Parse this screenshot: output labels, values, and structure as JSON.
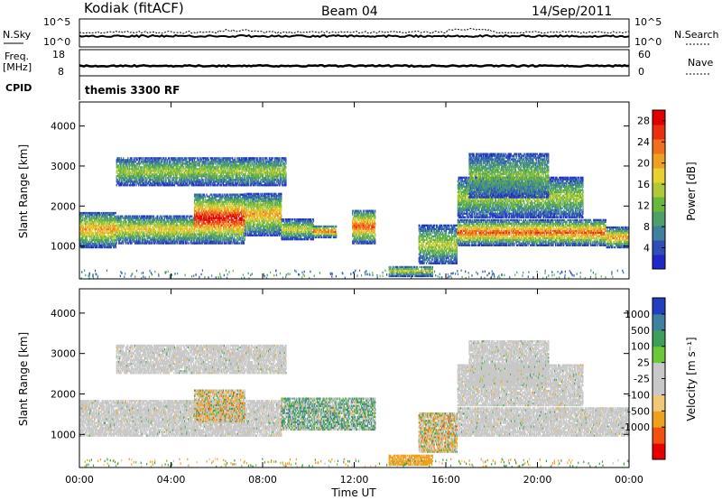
{
  "header": {
    "station": "Kodiak (fitACF)",
    "beam": "Beam 04",
    "date": "14/Sep/2011"
  },
  "top_panels": {
    "nsky_label": "N.Sky",
    "nsearch_label": "N.Search",
    "nsky_tick_top": "10^5",
    "nsky_tick_bottom": "10^0",
    "nsearch_tick_top": "10^5",
    "nsearch_tick_bottom": "10^0",
    "freq_label": "Freq.",
    "freq_unit": "[MHz]",
    "freq_tick_top": "18",
    "freq_tick_bottom": "8",
    "nave_label": "Nave",
    "nave_tick_top": "60",
    "nave_tick_bottom": "0",
    "cpid_label": "CPID",
    "cpid_value": "themis 3300 RF"
  },
  "colors": {
    "power_scale": [
      "#1e28c8",
      "#2e4fb8",
      "#3f7fa0",
      "#4f9f6a",
      "#6ab83a",
      "#b0c83a",
      "#e8d030",
      "#f0a020",
      "#f07020",
      "#e83010",
      "#e00000"
    ],
    "velocity_scale": [
      "#e80000",
      "#f05010",
      "#f0a020",
      "#f0c878",
      "#c8c8c8",
      "#c8c8c8",
      "#6ac83a",
      "#3e9f5a",
      "#3e80a0",
      "#2040c0"
    ],
    "ground_scatter": "#c8c8c8"
  },
  "chart_data": [
    {
      "type": "heatmap",
      "panel": "power",
      "ylabel": "Slant Range [km]",
      "xlabel": "Time UT",
      "x_ticks": [
        "00:00",
        "04:00",
        "08:00",
        "12:00",
        "16:00",
        "20:00",
        "00:00"
      ],
      "xlim": [
        0,
        24
      ],
      "y_ticks": [
        1000,
        2000,
        3000,
        4000
      ],
      "ylim": [
        180,
        4600
      ],
      "colorbar": {
        "label": "Power [dB]",
        "ticks": [
          4,
          8,
          12,
          16,
          20,
          24,
          28
        ],
        "range": [
          0,
          30
        ]
      },
      "echo_regions": [
        {
          "t0": 0.0,
          "t1": 1.6,
          "r0": 950,
          "r1": 1850,
          "core": 18
        },
        {
          "t0": 1.6,
          "t1": 5.0,
          "r0": 1050,
          "r1": 1750,
          "core": 16
        },
        {
          "t0": 5.0,
          "t1": 7.2,
          "r0": 1050,
          "r1": 2300,
          "core": 26
        },
        {
          "t0": 7.2,
          "t1": 8.8,
          "r0": 1250,
          "r1": 2300,
          "core": 18
        },
        {
          "t0": 1.6,
          "t1": 9.0,
          "r0": 2500,
          "r1": 3200,
          "core": 12
        },
        {
          "t0": 8.8,
          "t1": 10.2,
          "r0": 1150,
          "r1": 1650,
          "core": 14
        },
        {
          "t0": 10.2,
          "t1": 11.2,
          "r0": 1200,
          "r1": 1500,
          "core": 22
        },
        {
          "t0": 11.9,
          "t1": 12.9,
          "r0": 1050,
          "r1": 1900,
          "core": 22
        },
        {
          "t0": 13.5,
          "t1": 15.4,
          "r0": 230,
          "r1": 480,
          "core": 14
        },
        {
          "t0": 14.8,
          "t1": 16.5,
          "r0": 550,
          "r1": 1500,
          "core": 13
        },
        {
          "t0": 16.5,
          "t1": 23.0,
          "r0": 1000,
          "r1": 1650,
          "core": 22
        },
        {
          "t0": 16.5,
          "t1": 22.0,
          "r0": 1700,
          "r1": 2700,
          "core": 12
        },
        {
          "t0": 17.0,
          "t1": 20.5,
          "r0": 2200,
          "r1": 3300,
          "core": 10
        },
        {
          "t0": 23.0,
          "t1": 24.0,
          "r0": 950,
          "r1": 1450,
          "core": 20
        }
      ]
    },
    {
      "type": "heatmap",
      "panel": "velocity",
      "ylabel": "Slant Range [km]",
      "xlabel": "Time UT",
      "x_ticks": [
        "00:00",
        "04:00",
        "08:00",
        "12:00",
        "16:00",
        "20:00",
        "00:00"
      ],
      "xlim": [
        0,
        24
      ],
      "y_ticks": [
        1000,
        2000,
        3000,
        4000
      ],
      "ylim": [
        180,
        4600
      ],
      "colorbar": {
        "label": "Velocity [m s⁻¹]",
        "ticks": [
          "1000",
          "500",
          "100",
          "25",
          "-25",
          "-100",
          "-500",
          "-1000"
        ]
      },
      "echo_regions": [
        {
          "t0": 0.0,
          "t1": 8.8,
          "r0": 950,
          "r1": 1850,
          "kind": "ground"
        },
        {
          "t0": 1.6,
          "t1": 9.0,
          "r0": 2500,
          "r1": 3200,
          "kind": "ground"
        },
        {
          "t0": 5.0,
          "t1": 7.2,
          "r0": 1300,
          "r1": 2100,
          "kind": "mixed",
          "v": -150
        },
        {
          "t0": 8.8,
          "t1": 12.9,
          "r0": 1100,
          "r1": 1900,
          "kind": "mixed",
          "v": 300
        },
        {
          "t0": 13.5,
          "t1": 15.4,
          "r0": 230,
          "r1": 480,
          "kind": "ionospheric",
          "v": -200
        },
        {
          "t0": 14.8,
          "t1": 16.5,
          "r0": 550,
          "r1": 1500,
          "kind": "mixed",
          "v": -150
        },
        {
          "t0": 16.5,
          "t1": 24.0,
          "r0": 950,
          "r1": 1650,
          "kind": "ground"
        },
        {
          "t0": 16.5,
          "t1": 22.0,
          "r0": 1700,
          "r1": 2700,
          "kind": "ground"
        },
        {
          "t0": 17.0,
          "t1": 20.5,
          "r0": 2200,
          "r1": 3300,
          "kind": "ground"
        }
      ]
    }
  ]
}
